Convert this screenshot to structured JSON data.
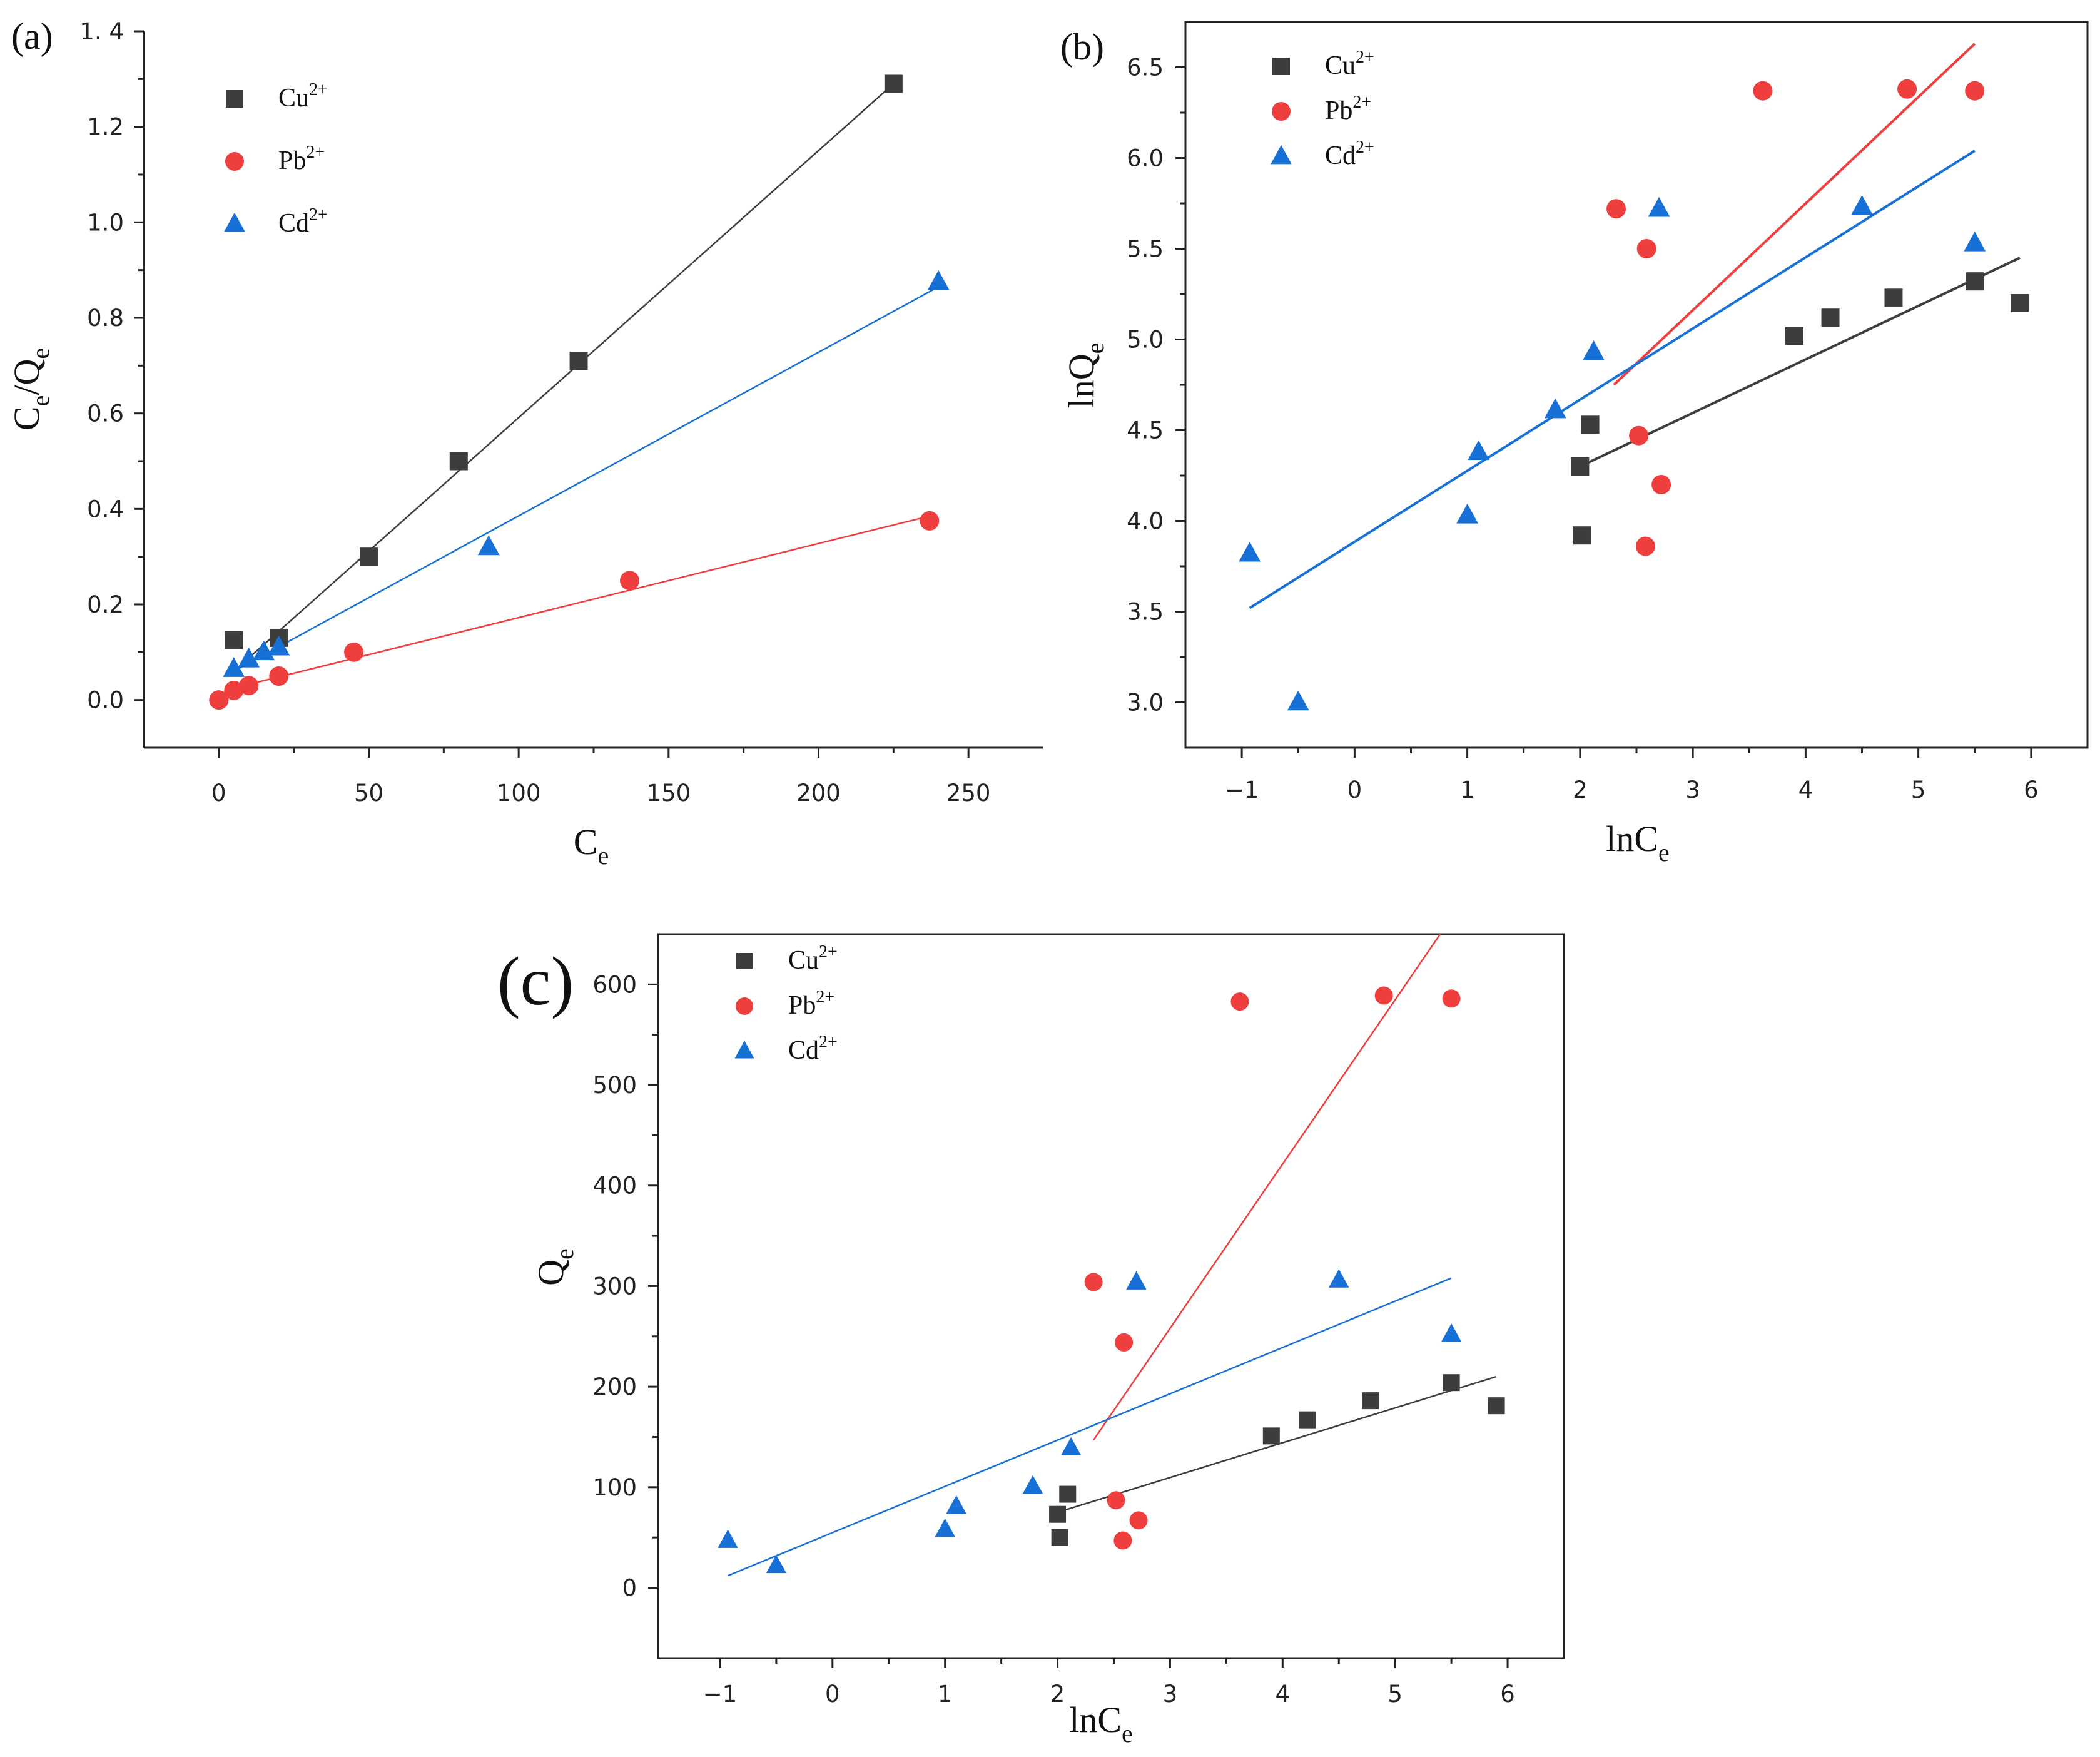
{
  "chart_data": [
    {
      "panel": "(a)",
      "type": "scatter",
      "xlabel_main": "C",
      "xlabel_sub": "e",
      "ylabel_main": "C",
      "ylabel_sub": "e",
      "ylabel_mid": "/Q",
      "ylabel_sub2": "e",
      "xlim": [
        -25,
        275
      ],
      "ylim": [
        -0.1,
        1.4
      ],
      "xticks": [
        0,
        50,
        100,
        150,
        200,
        250
      ],
      "yticks": [
        0.0,
        0.2,
        0.4,
        0.6,
        0.8,
        1.0,
        1.2,
        1.4
      ],
      "xtick_labels": [
        "0",
        "50",
        "100",
        "150",
        "200",
        "250"
      ],
      "ytick_labels": [
        "0.0",
        "0.2",
        "0.4",
        "0.6",
        "0.8",
        "1.0",
        "1.2",
        "1. 4"
      ],
      "legend_position": "top-left",
      "series": [
        {
          "name": "Cu",
          "sup": "2+",
          "marker": "square",
          "color": "#3d3d3d",
          "x": [
            5,
            20,
            50,
            80,
            120,
            225
          ],
          "y": [
            0.125,
            0.13,
            0.3,
            0.5,
            0.71,
            1.29
          ],
          "fit": {
            "x": [
              5,
              225
            ],
            "y": [
              0.06,
              1.29
            ]
          }
        },
        {
          "name": "Pb",
          "sup": "2+",
          "marker": "circle",
          "color": "#ef3e3e",
          "x": [
            0,
            5,
            10,
            20,
            45,
            137,
            237
          ],
          "y": [
            0.0,
            0.02,
            0.03,
            0.05,
            0.1,
            0.25,
            0.375
          ],
          "fit": {
            "x": [
              5,
              237
            ],
            "y": [
              0.025,
              0.385
            ]
          }
        },
        {
          "name": "Cd",
          "sup": "2+",
          "marker": "triangle",
          "color": "#1670d6",
          "x": [
            5,
            10,
            15,
            20,
            90,
            240
          ],
          "y": [
            0.065,
            0.085,
            0.1,
            0.11,
            0.32,
            0.875
          ],
          "fit": {
            "x": [
              5,
              240
            ],
            "y": [
              0.06,
              0.865
            ]
          }
        }
      ]
    },
    {
      "panel": "(b)",
      "type": "scatter",
      "xlabel_main": "lnC",
      "xlabel_sub": "e",
      "ylabel_main": "lnQ",
      "ylabel_sub": "e",
      "xlim": [
        -1.5,
        6.5
      ],
      "ylim": [
        2.75,
        6.75
      ],
      "xticks": [
        -1,
        0,
        1,
        2,
        3,
        4,
        5,
        6
      ],
      "yticks": [
        3.0,
        3.5,
        4.0,
        4.5,
        5.0,
        5.5,
        6.0,
        6.5
      ],
      "xtick_labels": [
        "−1",
        "0",
        "1",
        "2",
        "3",
        "4",
        "5",
        "6"
      ],
      "ytick_labels": [
        "3.0",
        "3.5",
        "4.0",
        "4.5",
        "5.0",
        "5.5",
        "6.0",
        "6.5"
      ],
      "legend_position": "top-left",
      "series": [
        {
          "name": "Cu",
          "sup": "2+",
          "marker": "square",
          "color": "#3d3d3d",
          "x": [
            2.0,
            2.02,
            2.09,
            3.9,
            4.22,
            4.78,
            5.5,
            5.9
          ],
          "y": [
            4.3,
            3.92,
            4.53,
            5.02,
            5.12,
            5.23,
            5.32,
            5.2
          ],
          "fit": {
            "x": [
              2.0,
              5.9
            ],
            "y": [
              4.3,
              5.45
            ]
          }
        },
        {
          "name": "Pb",
          "sup": "2+",
          "marker": "circle",
          "color": "#ef3e3e",
          "x": [
            2.32,
            2.52,
            2.58,
            2.59,
            2.72,
            3.62,
            4.9,
            5.5
          ],
          "y": [
            5.72,
            4.47,
            3.86,
            5.5,
            4.2,
            6.37,
            6.38,
            6.37
          ],
          "fit": {
            "x": [
              2.3,
              5.5
            ],
            "y": [
              4.75,
              6.63
            ]
          }
        },
        {
          "name": "Cd",
          "sup": "2+",
          "marker": "triangle",
          "color": "#1670d6",
          "x": [
            -0.93,
            -0.5,
            1.0,
            1.1,
            1.78,
            2.12,
            2.7,
            4.5,
            5.5
          ],
          "y": [
            3.82,
            3.0,
            4.03,
            4.38,
            4.61,
            4.93,
            5.72,
            5.73,
            5.53
          ],
          "fit": {
            "x": [
              -0.93,
              5.5
            ],
            "y": [
              3.52,
              6.04
            ]
          }
        }
      ]
    },
    {
      "panel": "(c)",
      "type": "scatter",
      "xlabel_main": "lnC",
      "xlabel_sub": "e",
      "ylabel_main": "Q",
      "ylabel_sub": "e",
      "xlim": [
        -1.55,
        6.5
      ],
      "ylim": [
        -70,
        650
      ],
      "xticks": [
        -1,
        0,
        1,
        2,
        3,
        4,
        5,
        6
      ],
      "yticks": [
        0,
        100,
        200,
        300,
        400,
        500,
        600
      ],
      "xtick_labels": [
        "−1",
        "0",
        "1",
        "2",
        "3",
        "4",
        "5",
        "6"
      ],
      "ytick_labels": [
        "0",
        "100",
        "200",
        "300",
        "400",
        "500",
        "600"
      ],
      "legend_position": "top-left",
      "series": [
        {
          "name": "Cu",
          "sup": "2+",
          "marker": "square",
          "color": "#3d3d3d",
          "x": [
            2.0,
            2.02,
            2.09,
            3.9,
            4.22,
            4.78,
            5.5,
            5.9
          ],
          "y": [
            73,
            50,
            93,
            151,
            167,
            186,
            204,
            181
          ],
          "fit": {
            "x": [
              2.0,
              5.9
            ],
            "y": [
              75,
              210
            ]
          }
        },
        {
          "name": "Pb",
          "sup": "2+",
          "marker": "circle",
          "color": "#ef3e3e",
          "x": [
            2.32,
            2.52,
            2.58,
            2.59,
            2.72,
            3.62,
            4.9,
            5.5
          ],
          "y": [
            304,
            87,
            47,
            244,
            67,
            583,
            589,
            586
          ],
          "fit": {
            "x": [
              2.32,
              5.4
            ],
            "y": [
              147,
              650
            ]
          }
        },
        {
          "name": "Cd",
          "sup": "2+",
          "marker": "triangle",
          "color": "#1670d6",
          "x": [
            -0.93,
            -0.5,
            1.0,
            1.1,
            1.78,
            2.12,
            2.7,
            4.5,
            5.5
          ],
          "y": [
            47,
            22,
            58,
            81,
            101,
            139,
            304,
            306,
            252
          ],
          "fit": {
            "x": [
              -0.93,
              5.5
            ],
            "y": [
              12,
              308
            ]
          }
        }
      ]
    }
  ]
}
